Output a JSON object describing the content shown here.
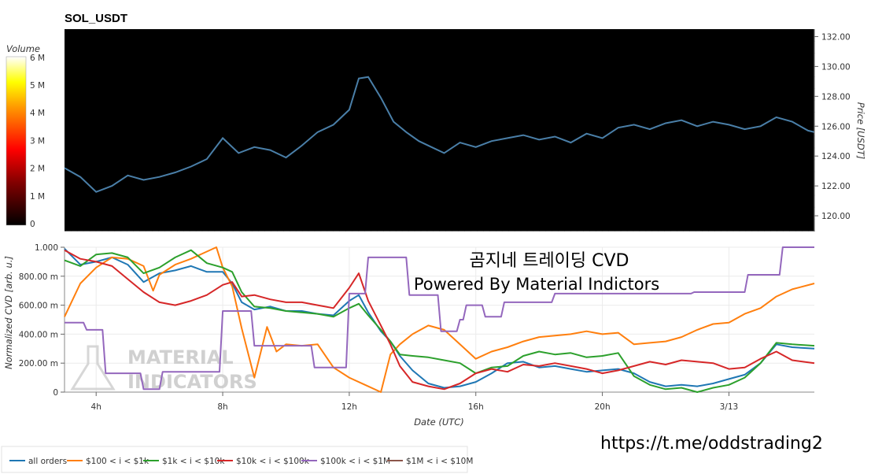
{
  "chart_data": [
    {
      "type": "heatmap",
      "title": "SOL_USDT",
      "ylabel": "Price [USDT]",
      "ylim": [
        119,
        132.5
      ],
      "yticks": [
        "120.00",
        "122.00",
        "124.00",
        "126.00",
        "128.00",
        "130.00",
        "132.00"
      ],
      "colorbar": {
        "label": "Volume",
        "ticks": [
          "0",
          "1 M",
          "2 M",
          "3 M",
          "4 M",
          "5 M",
          "6 M"
        ]
      },
      "price_series": {
        "x_hours": [
          3.0,
          3.5,
          4.0,
          4.5,
          5.0,
          5.5,
          6.0,
          6.5,
          7.0,
          7.5,
          8.0,
          8.5,
          9.0,
          9.5,
          10.0,
          10.5,
          11.0,
          11.5,
          12.0,
          12.3,
          12.6,
          13.0,
          13.4,
          13.8,
          14.2,
          14.6,
          15.0,
          15.5,
          16.0,
          16.5,
          17.0,
          17.5,
          18.0,
          18.5,
          19.0,
          19.5,
          20.0,
          20.5,
          21.0,
          21.5,
          22.0,
          22.5,
          23.0,
          23.5,
          24.0,
          24.5,
          25.0,
          25.5,
          26.0,
          26.5,
          26.7
        ],
        "price": [
          123.2,
          122.6,
          121.6,
          122.0,
          122.7,
          122.4,
          122.6,
          122.9,
          123.3,
          123.8,
          125.2,
          124.2,
          124.6,
          124.4,
          123.9,
          124.7,
          125.6,
          126.1,
          127.1,
          129.2,
          129.3,
          127.9,
          126.3,
          125.6,
          125.0,
          124.6,
          124.2,
          124.9,
          124.6,
          125.0,
          125.2,
          125.4,
          125.1,
          125.3,
          124.9,
          125.5,
          125.2,
          125.9,
          126.1,
          125.8,
          126.2,
          126.4,
          126.0,
          126.3,
          126.1,
          125.8,
          126.0,
          126.6,
          126.3,
          125.7,
          125.6
        ]
      }
    },
    {
      "type": "line",
      "xlabel": "Date (UTC)",
      "ylabel": "Normalized CVD [arb. u.]",
      "ylim": [
        0,
        1
      ],
      "xlim_hours": [
        3.0,
        26.7
      ],
      "xticks": [
        "4h",
        "8h",
        "12h",
        "16h",
        "20h",
        "3/13"
      ],
      "yticks": [
        "0",
        "200.00 m",
        "400.00 m",
        "600.00 m",
        "800.00 m",
        "1.000"
      ],
      "series": [
        {
          "name": "all orders",
          "color": "#1f77b4",
          "x": [
            3.0,
            3.5,
            4.0,
            4.5,
            5.0,
            5.5,
            6.0,
            6.5,
            7.0,
            7.5,
            8.0,
            8.3,
            8.6,
            9.0,
            9.5,
            10.0,
            10.5,
            11.0,
            11.5,
            12.0,
            12.3,
            12.6,
            13.0,
            13.3,
            13.6,
            14.0,
            14.5,
            15.0,
            15.5,
            16.0,
            16.5,
            17.0,
            17.5,
            18.0,
            18.5,
            19.0,
            19.5,
            20.0,
            20.5,
            21.0,
            21.5,
            22.0,
            22.5,
            23.0,
            23.5,
            24.0,
            24.5,
            25.0,
            25.5,
            26.0,
            26.7
          ],
          "y": [
            0.99,
            0.88,
            0.9,
            0.93,
            0.88,
            0.76,
            0.82,
            0.84,
            0.87,
            0.83,
            0.83,
            0.75,
            0.62,
            0.57,
            0.59,
            0.56,
            0.56,
            0.54,
            0.53,
            0.63,
            0.67,
            0.55,
            0.42,
            0.35,
            0.25,
            0.15,
            0.06,
            0.03,
            0.04,
            0.07,
            0.13,
            0.2,
            0.21,
            0.17,
            0.18,
            0.16,
            0.14,
            0.15,
            0.16,
            0.13,
            0.07,
            0.04,
            0.05,
            0.04,
            0.06,
            0.09,
            0.12,
            0.2,
            0.33,
            0.31,
            0.3
          ]
        },
        {
          "name": "$100 < i < $1k",
          "color": "#ff7f0e",
          "x": [
            3.0,
            3.5,
            4.0,
            4.5,
            5.0,
            5.5,
            5.8,
            6.0,
            6.5,
            7.0,
            7.5,
            7.8,
            8.0,
            8.3,
            8.6,
            9.0,
            9.4,
            9.7,
            10.0,
            10.5,
            11.0,
            11.5,
            12.0,
            12.5,
            13.0,
            13.3,
            13.6,
            14.0,
            14.5,
            15.0,
            15.5,
            16.0,
            16.5,
            17.0,
            17.5,
            18.0,
            18.5,
            19.0,
            19.5,
            20.0,
            20.5,
            21.0,
            21.5,
            22.0,
            22.5,
            23.0,
            23.5,
            24.0,
            24.5,
            25.0,
            25.5,
            26.0,
            26.7
          ],
          "y": [
            0.52,
            0.75,
            0.86,
            0.93,
            0.92,
            0.87,
            0.7,
            0.81,
            0.88,
            0.92,
            0.97,
            1.0,
            0.86,
            0.73,
            0.44,
            0.1,
            0.45,
            0.28,
            0.33,
            0.32,
            0.33,
            0.17,
            0.1,
            0.05,
            0.0,
            0.26,
            0.33,
            0.4,
            0.46,
            0.43,
            0.33,
            0.23,
            0.28,
            0.31,
            0.35,
            0.38,
            0.39,
            0.4,
            0.42,
            0.4,
            0.41,
            0.33,
            0.34,
            0.35,
            0.38,
            0.43,
            0.47,
            0.48,
            0.54,
            0.58,
            0.66,
            0.71,
            0.75
          ]
        },
        {
          "name": "$1k < i < $10k",
          "color": "#2ca02c",
          "x": [
            3.0,
            3.5,
            4.0,
            4.5,
            5.0,
            5.5,
            6.0,
            6.5,
            7.0,
            7.5,
            8.0,
            8.3,
            8.6,
            9.0,
            9.5,
            10.0,
            10.5,
            11.0,
            11.5,
            12.0,
            12.3,
            12.6,
            13.0,
            13.3,
            13.6,
            14.0,
            14.5,
            15.0,
            15.5,
            16.0,
            16.5,
            17.0,
            17.5,
            18.0,
            18.5,
            19.0,
            19.5,
            20.0,
            20.5,
            21.0,
            21.5,
            22.0,
            22.5,
            23.0,
            23.5,
            24.0,
            24.5,
            25.0,
            25.5,
            26.0,
            26.7
          ],
          "y": [
            0.91,
            0.87,
            0.95,
            0.96,
            0.93,
            0.82,
            0.86,
            0.93,
            0.98,
            0.89,
            0.86,
            0.83,
            0.69,
            0.59,
            0.58,
            0.56,
            0.55,
            0.54,
            0.52,
            0.58,
            0.61,
            0.53,
            0.43,
            0.35,
            0.26,
            0.25,
            0.24,
            0.22,
            0.2,
            0.13,
            0.17,
            0.18,
            0.25,
            0.28,
            0.26,
            0.27,
            0.24,
            0.25,
            0.27,
            0.11,
            0.05,
            0.02,
            0.03,
            0.0,
            0.03,
            0.05,
            0.1,
            0.2,
            0.34,
            0.33,
            0.32
          ]
        },
        {
          "name": "$10k < i < $100k",
          "color": "#d62728",
          "x": [
            3.0,
            3.5,
            4.0,
            4.5,
            5.0,
            5.5,
            6.0,
            6.5,
            7.0,
            7.5,
            8.0,
            8.3,
            8.6,
            9.0,
            9.5,
            10.0,
            10.5,
            11.0,
            11.5,
            12.0,
            12.3,
            12.6,
            13.0,
            13.3,
            13.6,
            14.0,
            14.5,
            15.0,
            15.5,
            16.0,
            16.5,
            17.0,
            17.5,
            18.0,
            18.5,
            19.0,
            19.5,
            20.0,
            20.5,
            21.0,
            21.5,
            22.0,
            22.5,
            23.0,
            23.5,
            24.0,
            24.5,
            25.0,
            25.5,
            26.0,
            26.7
          ],
          "y": [
            0.98,
            0.92,
            0.9,
            0.87,
            0.78,
            0.69,
            0.62,
            0.6,
            0.63,
            0.67,
            0.74,
            0.76,
            0.66,
            0.67,
            0.64,
            0.62,
            0.62,
            0.6,
            0.58,
            0.72,
            0.82,
            0.63,
            0.46,
            0.33,
            0.18,
            0.07,
            0.04,
            0.02,
            0.06,
            0.13,
            0.16,
            0.14,
            0.19,
            0.18,
            0.2,
            0.18,
            0.16,
            0.13,
            0.15,
            0.18,
            0.21,
            0.19,
            0.22,
            0.21,
            0.2,
            0.16,
            0.17,
            0.23,
            0.28,
            0.22,
            0.2
          ]
        },
        {
          "name": "$100k < i < $1M",
          "color": "#9467bd",
          "x": [
            3.0,
            3.6,
            3.7,
            4.2,
            4.3,
            5.4,
            5.5,
            6.0,
            6.1,
            7.9,
            8.0,
            8.9,
            9.0,
            10.8,
            10.9,
            11.9,
            12.0,
            12.5,
            12.6,
            13.8,
            13.9,
            14.8,
            14.9,
            15.4,
            15.5,
            15.6,
            15.7,
            16.2,
            16.3,
            16.8,
            16.9,
            18.4,
            18.5,
            22.8,
            22.9,
            24.5,
            24.6,
            25.6,
            25.7,
            26.7
          ],
          "y": [
            0.48,
            0.48,
            0.43,
            0.43,
            0.13,
            0.13,
            0.02,
            0.02,
            0.14,
            0.14,
            0.56,
            0.56,
            0.32,
            0.32,
            0.17,
            0.17,
            0.68,
            0.68,
            0.93,
            0.93,
            0.67,
            0.67,
            0.42,
            0.42,
            0.5,
            0.5,
            0.6,
            0.6,
            0.52,
            0.52,
            0.62,
            0.62,
            0.68,
            0.68,
            0.69,
            0.69,
            0.81,
            0.81,
            1.0,
            1.0
          ]
        },
        {
          "name": "$1M < i < $10M",
          "color": "#8c564b",
          "x": [],
          "y": []
        }
      ]
    }
  ],
  "overlay": {
    "line1": "곰지네 트레이딩 CVD",
    "line2": "Powered By Material Indictors",
    "url": "https://t.me/oddstrading2",
    "watermark": [
      "MATERIAL",
      "INDICATORS"
    ]
  }
}
